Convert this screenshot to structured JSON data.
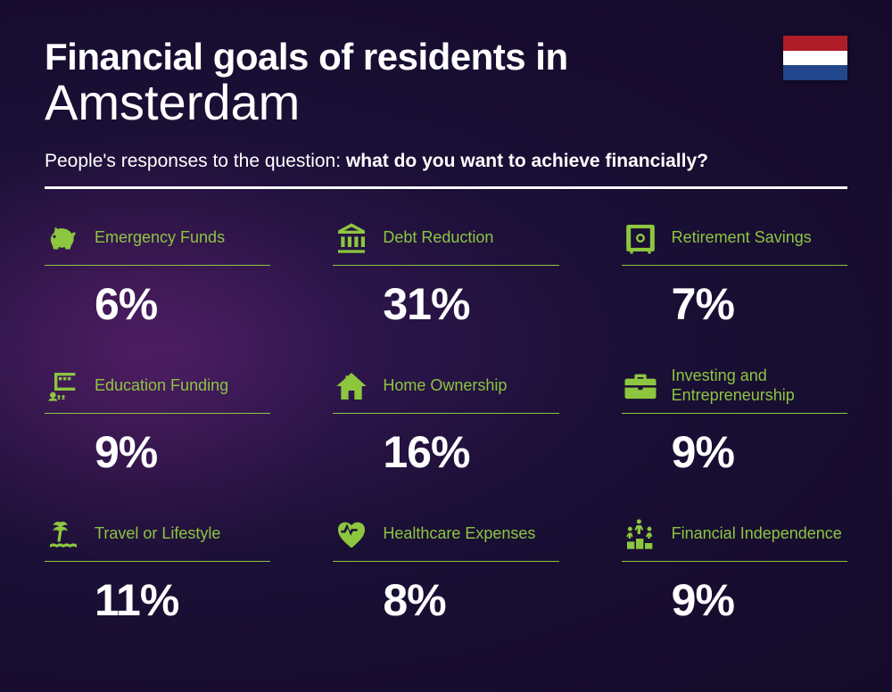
{
  "header": {
    "title_line1": "Financial goals of residents in",
    "title_line2": "Amsterdam",
    "subtitle_prefix": "People's responses to the question: ",
    "subtitle_bold": "what do you want to achieve financially?"
  },
  "flag": {
    "stripe1": "#ae1c28",
    "stripe2": "#ffffff",
    "stripe3": "#21468b"
  },
  "colors": {
    "accent": "#8dc63f",
    "text": "#ffffff"
  },
  "items": [
    {
      "label": "Emergency Funds",
      "value": "6%",
      "icon": "piggy-bank"
    },
    {
      "label": "Debt Reduction",
      "value": "31%",
      "icon": "bank"
    },
    {
      "label": "Retirement Savings",
      "value": "7%",
      "icon": "safe"
    },
    {
      "label": "Education Funding",
      "value": "9%",
      "icon": "presentation"
    },
    {
      "label": "Home Ownership",
      "value": "16%",
      "icon": "house"
    },
    {
      "label": "Investing and Entrepreneurship",
      "value": "9%",
      "icon": "briefcase"
    },
    {
      "label": "Travel or Lifestyle",
      "value": "11%",
      "icon": "island"
    },
    {
      "label": "Healthcare Expenses",
      "value": "8%",
      "icon": "heart-pulse"
    },
    {
      "label": "Financial Independence",
      "value": "9%",
      "icon": "podium"
    }
  ]
}
